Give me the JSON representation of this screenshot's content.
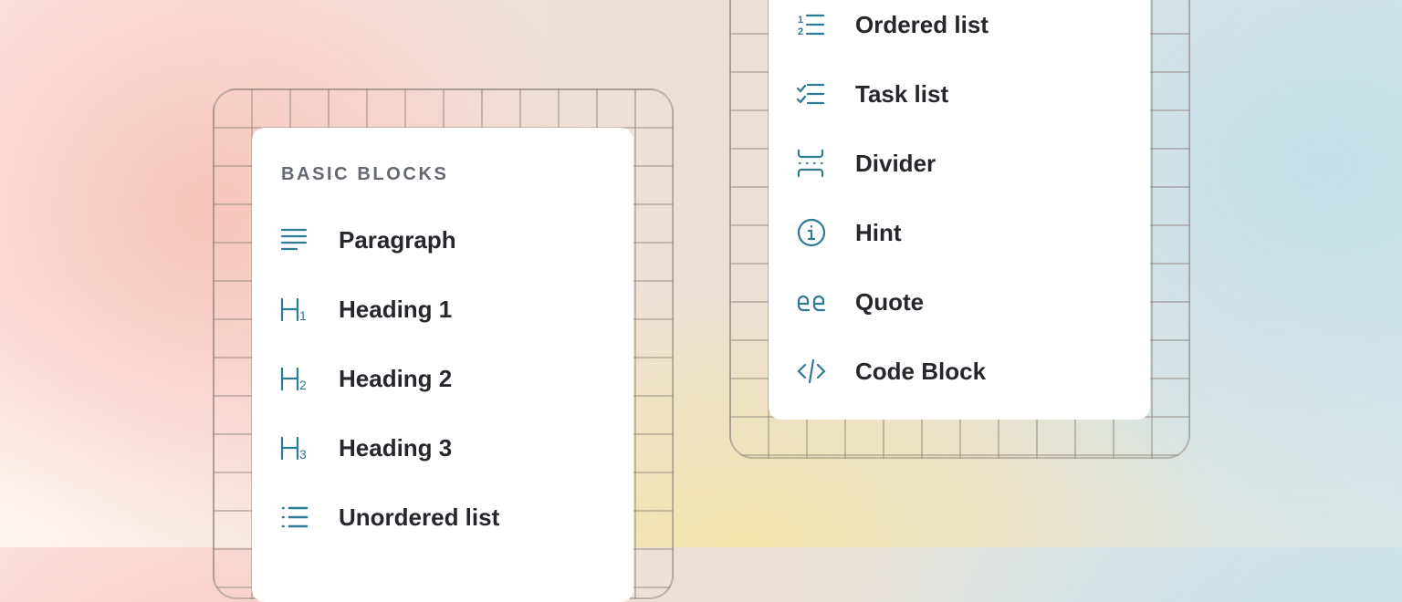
{
  "colors": {
    "icon": "#2f7a93",
    "text": "#25272c",
    "section": "#646870"
  },
  "left_menu": {
    "section_title": "BASIC BLOCKS",
    "items": [
      {
        "label": "Paragraph",
        "icon": "paragraph-icon"
      },
      {
        "label": "Heading 1",
        "icon": "heading-1-icon"
      },
      {
        "label": "Heading 2",
        "icon": "heading-2-icon"
      },
      {
        "label": "Heading 3",
        "icon": "heading-3-icon"
      },
      {
        "label": "Unordered list",
        "icon": "unordered-list-icon"
      }
    ]
  },
  "right_menu": {
    "items": [
      {
        "label": "Ordered list",
        "icon": "ordered-list-icon"
      },
      {
        "label": "Task list",
        "icon": "task-list-icon"
      },
      {
        "label": "Divider",
        "icon": "divider-icon"
      },
      {
        "label": "Hint",
        "icon": "info-icon"
      },
      {
        "label": "Quote",
        "icon": "quote-icon"
      },
      {
        "label": "Code Block",
        "icon": "code-icon"
      }
    ]
  }
}
